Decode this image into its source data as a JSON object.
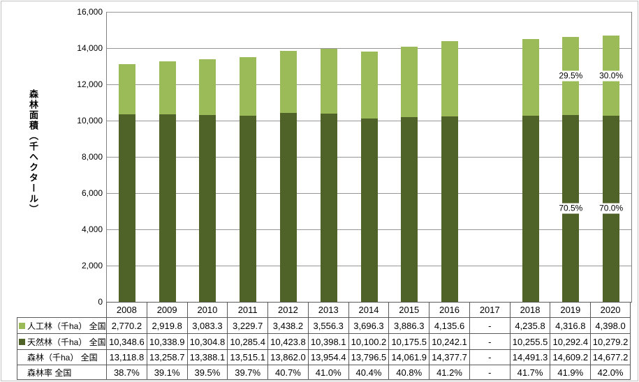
{
  "chart": {
    "y_axis_title": "森林面積（千ヘクタール）",
    "y_ticks": [
      "16,000",
      "14,000",
      "12,000",
      "10,000",
      "8,000",
      "6,000",
      "4,000",
      "2,000",
      "0"
    ]
  },
  "chart_data": {
    "type": "bar",
    "stacked": true,
    "title": "",
    "xlabel": "",
    "ylabel": "森林面積（千ヘクタール）",
    "ylim": [
      0,
      16000
    ],
    "y_tick_step": 2000,
    "grid": true,
    "legend_position": "in-table-row-labels",
    "categories": [
      "2008",
      "2009",
      "2010",
      "2011",
      "2012",
      "2013",
      "2014",
      "2015",
      "2016",
      "2017",
      "2018",
      "2019",
      "2020"
    ],
    "series": [
      {
        "name": "人工林（千ha） 全国",
        "color": "#9BBB59",
        "stack_order": "top",
        "values": [
          2770.2,
          2919.8,
          3083.3,
          3229.7,
          3438.2,
          3556.3,
          3696.3,
          3886.3,
          4135.6,
          null,
          4235.8,
          4316.8,
          4398.0
        ]
      },
      {
        "name": "天然林（千ha） 全国",
        "color": "#4F6228",
        "stack_order": "bottom",
        "values": [
          10348.6,
          10338.9,
          10304.8,
          10285.4,
          10423.8,
          10398.1,
          10100.2,
          10175.5,
          10242.1,
          null,
          10255.5,
          10292.4,
          10279.2
        ]
      }
    ],
    "totals": {
      "name": "森林（千ha） 全国",
      "values": [
        13118.8,
        13258.7,
        13388.1,
        13515.1,
        13862.0,
        13954.4,
        13796.5,
        14061.9,
        14377.7,
        null,
        14491.3,
        14609.2,
        14677.2
      ]
    },
    "rates": {
      "name": "森林率 全国",
      "values": [
        "38.7%",
        "39.1%",
        "39.5%",
        "39.7%",
        "40.7%",
        "41.0%",
        "40.4%",
        "40.8%",
        "41.2%",
        "-",
        "41.7%",
        "41.9%",
        "42.0%"
      ]
    },
    "annotations": [
      {
        "category": "2019",
        "series_index": 0,
        "text": "29.5%"
      },
      {
        "category": "2020",
        "series_index": 0,
        "text": "30.0%"
      },
      {
        "category": "2019",
        "series_index": 1,
        "text": "70.5%"
      },
      {
        "category": "2020",
        "series_index": 1,
        "text": "70.0%"
      }
    ]
  },
  "table": {
    "corner_label": "",
    "years": [
      "2008",
      "2009",
      "2010",
      "2011",
      "2012",
      "2013",
      "2014",
      "2015",
      "2016",
      "2017",
      "2018",
      "2019",
      "2020"
    ],
    "rows": [
      {
        "label": "人工林（千ha） 全国",
        "marker_color": "#9BBB59",
        "values": [
          "2,770.2",
          "2,919.8",
          "3,083.3",
          "3,229.7",
          "3,438.2",
          "3,556.3",
          "3,696.3",
          "3,886.3",
          "4,135.6",
          "-",
          "4,235.8",
          "4,316.8",
          "4,398.0"
        ]
      },
      {
        "label": "天然林（千ha） 全国",
        "marker_color": "#4F6228",
        "values": [
          "10,348.6",
          "10,338.9",
          "10,304.8",
          "10,285.4",
          "10,423.8",
          "10,398.1",
          "10,100.2",
          "10,175.5",
          "10,242.1",
          "-",
          "10,255.5",
          "10,292.4",
          "10,279.2"
        ]
      },
      {
        "label": "森林（千ha） 全国",
        "marker_color": null,
        "values": [
          "13,118.8",
          "13,258.7",
          "13,388.1",
          "13,515.1",
          "13,862.0",
          "13,954.4",
          "13,796.5",
          "14,061.9",
          "14,377.7",
          "-",
          "14,491.3",
          "14,609.2",
          "14,677.2"
        ]
      },
      {
        "label": "森林率 全国",
        "marker_color": null,
        "values": [
          "38.7%",
          "39.1%",
          "39.5%",
          "39.7%",
          "40.7%",
          "41.0%",
          "40.4%",
          "40.8%",
          "41.2%",
          "-",
          "41.7%",
          "41.9%",
          "42.0%"
        ]
      }
    ]
  },
  "colors": {
    "planted_green": "#9BBB59",
    "natural_green": "#4F6228",
    "gridline": "#969696",
    "axis": "#808080",
    "table_border": "#595959",
    "outer_border": "#C3C3C3",
    "text": "#000000",
    "annotation_bg": "#FFFFFF"
  }
}
